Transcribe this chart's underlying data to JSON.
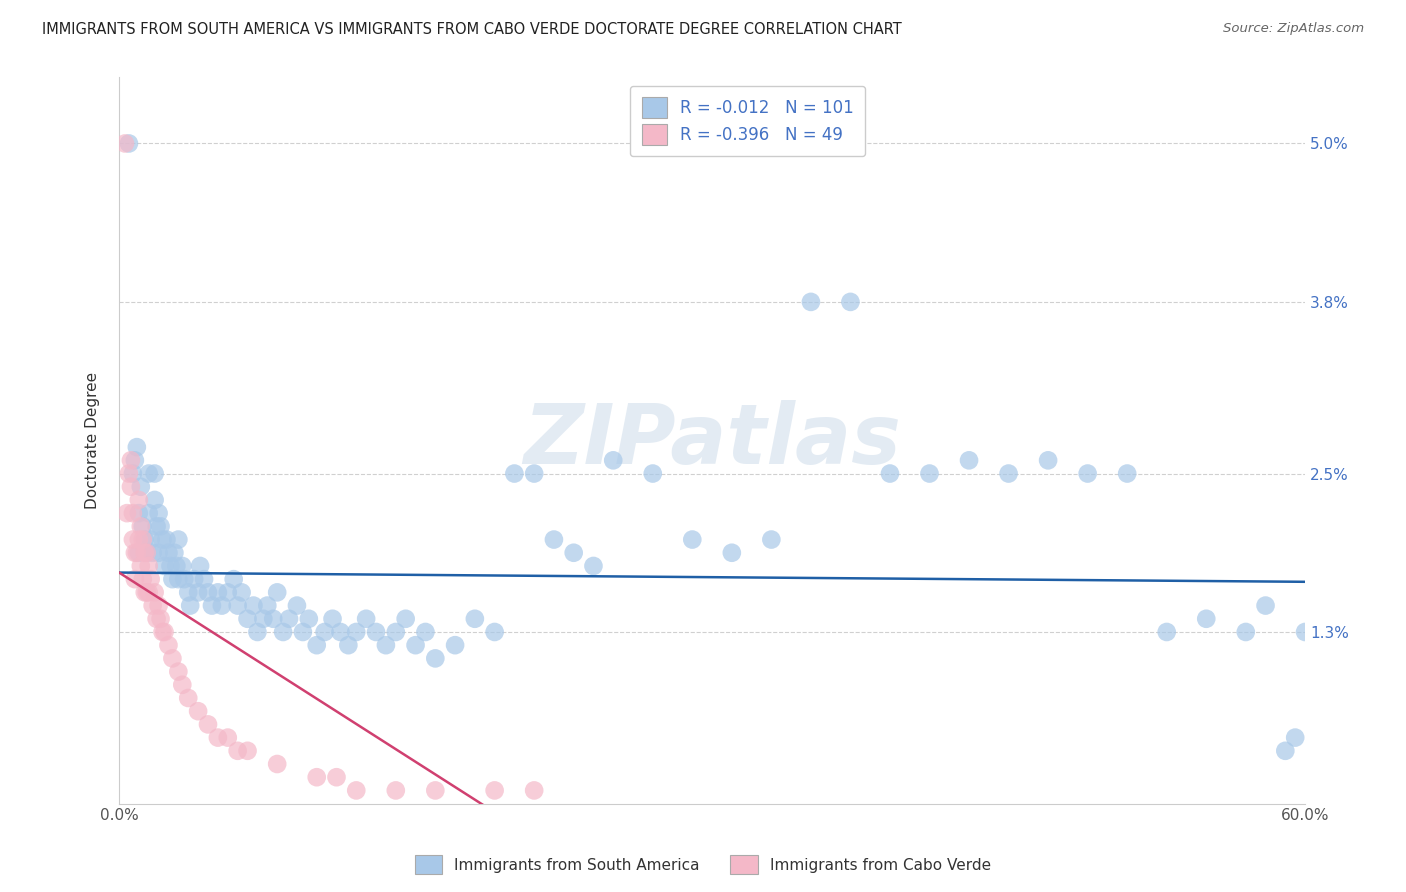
{
  "title": "IMMIGRANTS FROM SOUTH AMERICA VS IMMIGRANTS FROM CABO VERDE DOCTORATE DEGREE CORRELATION CHART",
  "source": "Source: ZipAtlas.com",
  "ylabel": "Doctorate Degree",
  "right_ytick_labels": [
    "1.3%",
    "2.5%",
    "3.8%",
    "5.0%"
  ],
  "right_ytick_values": [
    0.013,
    0.025,
    0.038,
    0.05
  ],
  "xlim": [
    0.0,
    0.6
  ],
  "ylim": [
    0.0,
    0.055
  ],
  "legend_label1": "Immigrants from South America",
  "legend_label2": "Immigrants from Cabo Verde",
  "R1": "-0.012",
  "N1": "101",
  "R2": "-0.396",
  "N2": "49",
  "color_blue": "#a8c8e8",
  "color_pink": "#f4b8c8",
  "color_blue_line": "#1f5fa6",
  "color_pink_line": "#d04070",
  "watermark": "ZIPatlas",
  "background_color": "#ffffff",
  "grid_color": "#d0d0d0",
  "title_color": "#222222",
  "right_axis_label_color": "#4472c4",
  "stats_text_color": "#4472c4",
  "blue_trend_start_y": 0.0175,
  "blue_trend_end_y": 0.0168,
  "pink_trend_start_y": 0.0175,
  "pink_trend_end_x": 0.225,
  "pink_trend_end_y": -0.004,
  "blue_x": [
    0.005,
    0.007,
    0.008,
    0.009,
    0.01,
    0.01,
    0.011,
    0.012,
    0.013,
    0.014,
    0.015,
    0.015,
    0.016,
    0.017,
    0.018,
    0.018,
    0.019,
    0.02,
    0.02,
    0.021,
    0.022,
    0.023,
    0.024,
    0.025,
    0.026,
    0.027,
    0.028,
    0.029,
    0.03,
    0.03,
    0.032,
    0.033,
    0.035,
    0.036,
    0.038,
    0.04,
    0.041,
    0.043,
    0.045,
    0.047,
    0.05,
    0.052,
    0.055,
    0.058,
    0.06,
    0.062,
    0.065,
    0.068,
    0.07,
    0.073,
    0.075,
    0.078,
    0.08,
    0.083,
    0.086,
    0.09,
    0.093,
    0.096,
    0.1,
    0.104,
    0.108,
    0.112,
    0.116,
    0.12,
    0.125,
    0.13,
    0.135,
    0.14,
    0.145,
    0.15,
    0.155,
    0.16,
    0.17,
    0.18,
    0.19,
    0.2,
    0.21,
    0.22,
    0.23,
    0.24,
    0.25,
    0.27,
    0.29,
    0.31,
    0.33,
    0.35,
    0.37,
    0.39,
    0.41,
    0.43,
    0.45,
    0.47,
    0.49,
    0.51,
    0.53,
    0.55,
    0.57,
    0.58,
    0.59,
    0.595,
    0.6
  ],
  "blue_y": [
    0.05,
    0.025,
    0.026,
    0.027,
    0.022,
    0.019,
    0.024,
    0.021,
    0.02,
    0.019,
    0.025,
    0.022,
    0.02,
    0.019,
    0.025,
    0.023,
    0.021,
    0.022,
    0.019,
    0.021,
    0.02,
    0.018,
    0.02,
    0.019,
    0.018,
    0.017,
    0.019,
    0.018,
    0.02,
    0.017,
    0.018,
    0.017,
    0.016,
    0.015,
    0.017,
    0.016,
    0.018,
    0.017,
    0.016,
    0.015,
    0.016,
    0.015,
    0.016,
    0.017,
    0.015,
    0.016,
    0.014,
    0.015,
    0.013,
    0.014,
    0.015,
    0.014,
    0.016,
    0.013,
    0.014,
    0.015,
    0.013,
    0.014,
    0.012,
    0.013,
    0.014,
    0.013,
    0.012,
    0.013,
    0.014,
    0.013,
    0.012,
    0.013,
    0.014,
    0.012,
    0.013,
    0.011,
    0.012,
    0.014,
    0.013,
    0.025,
    0.025,
    0.02,
    0.019,
    0.018,
    0.026,
    0.025,
    0.02,
    0.019,
    0.02,
    0.038,
    0.038,
    0.025,
    0.025,
    0.026,
    0.025,
    0.026,
    0.025,
    0.025,
    0.013,
    0.014,
    0.013,
    0.015,
    0.004,
    0.005,
    0.013
  ],
  "pink_x": [
    0.003,
    0.004,
    0.005,
    0.006,
    0.006,
    0.007,
    0.007,
    0.008,
    0.008,
    0.009,
    0.01,
    0.01,
    0.011,
    0.011,
    0.012,
    0.012,
    0.013,
    0.013,
    0.014,
    0.014,
    0.015,
    0.015,
    0.016,
    0.017,
    0.018,
    0.019,
    0.02,
    0.021,
    0.022,
    0.023,
    0.025,
    0.027,
    0.03,
    0.032,
    0.035,
    0.04,
    0.045,
    0.05,
    0.055,
    0.06,
    0.065,
    0.08,
    0.1,
    0.11,
    0.12,
    0.14,
    0.16,
    0.19,
    0.21
  ],
  "pink_y": [
    0.05,
    0.022,
    0.025,
    0.026,
    0.024,
    0.022,
    0.02,
    0.019,
    0.017,
    0.019,
    0.023,
    0.02,
    0.021,
    0.018,
    0.02,
    0.017,
    0.019,
    0.016,
    0.019,
    0.016,
    0.018,
    0.016,
    0.017,
    0.015,
    0.016,
    0.014,
    0.015,
    0.014,
    0.013,
    0.013,
    0.012,
    0.011,
    0.01,
    0.009,
    0.008,
    0.007,
    0.006,
    0.005,
    0.005,
    0.004,
    0.004,
    0.003,
    0.002,
    0.002,
    0.001,
    0.001,
    0.001,
    0.001,
    0.001
  ]
}
